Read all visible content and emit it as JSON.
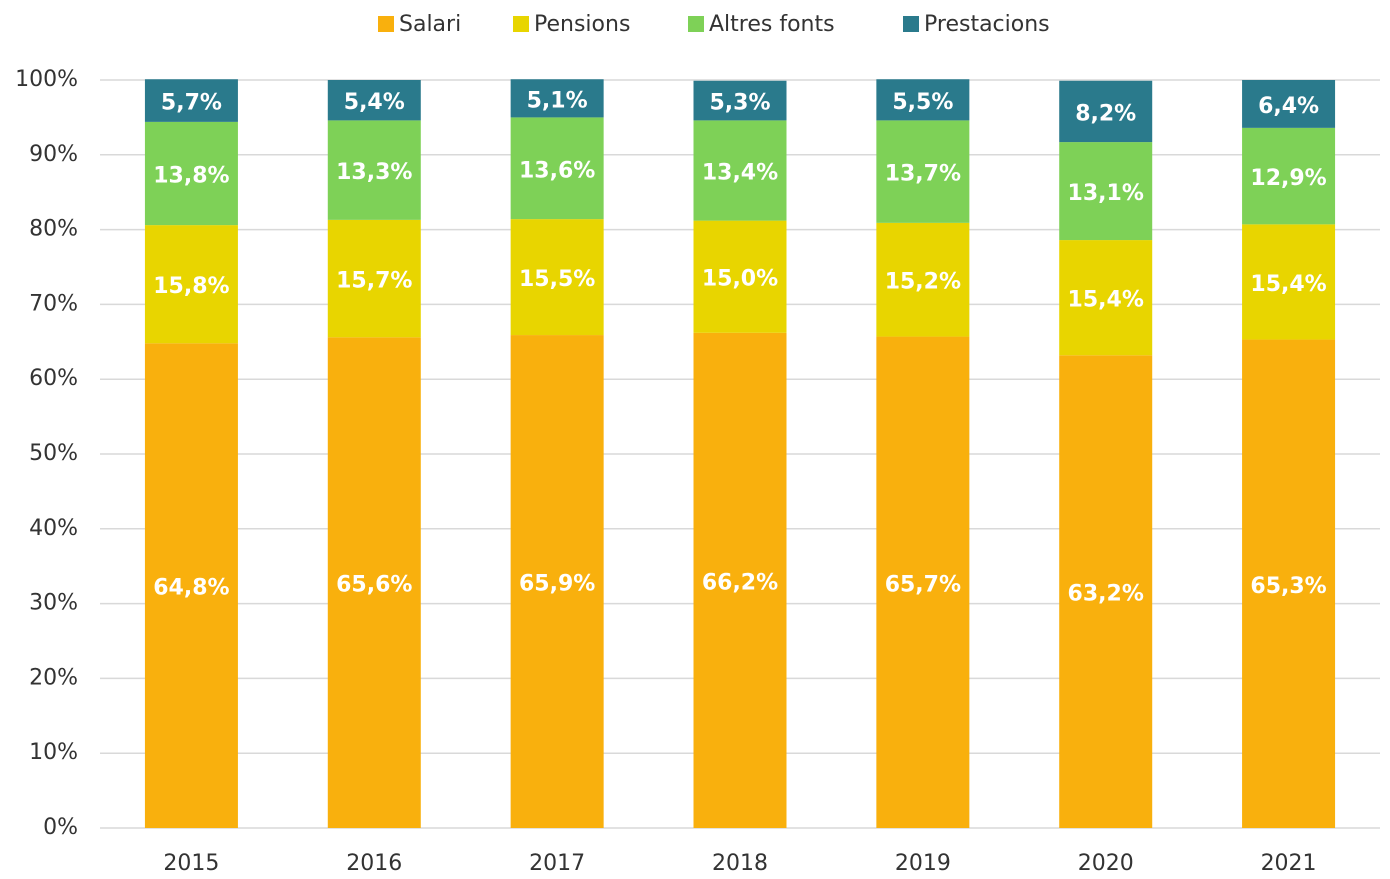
{
  "chart_data": {
    "type": "stacked_bar",
    "categories": [
      "2015",
      "2016",
      "2017",
      "2018",
      "2019",
      "2020",
      "2021"
    ],
    "series": [
      {
        "name": "Salari",
        "color": "#f9b00d",
        "values": [
          64.8,
          65.6,
          65.9,
          66.2,
          65.7,
          63.2,
          65.3
        ],
        "value_labels": [
          "64,8%",
          "65,6%",
          "65,9%",
          "66,2%",
          "65,7%",
          "63,2%",
          "65,3%"
        ]
      },
      {
        "name": "Pensions",
        "color": "#e8d500",
        "values": [
          15.8,
          15.7,
          15.5,
          15.0,
          15.2,
          15.4,
          15.4
        ],
        "value_labels": [
          "15,8%",
          "15,7%",
          "15,5%",
          "15,0%",
          "15,2%",
          "15,4%",
          "15,4%"
        ]
      },
      {
        "name": "Altres fonts",
        "color": "#7ed157",
        "values": [
          13.8,
          13.3,
          13.6,
          13.4,
          13.7,
          13.1,
          12.9
        ],
        "value_labels": [
          "13,8%",
          "13,3%",
          "13,6%",
          "13,4%",
          "13,7%",
          "13,1%",
          "12,9%"
        ]
      },
      {
        "name": "Prestacions",
        "color": "#2a7a8c",
        "values": [
          5.7,
          5.4,
          5.1,
          5.3,
          5.5,
          8.2,
          6.4
        ],
        "value_labels": [
          "5,7%",
          "5,4%",
          "5,1%",
          "5,3%",
          "5,5%",
          "8,2%",
          "6,4%"
        ]
      }
    ],
    "ylim": [
      0,
      100
    ],
    "yticks": [
      {
        "value": 0,
        "label": "0%"
      },
      {
        "value": 10,
        "label": "10%"
      },
      {
        "value": 20,
        "label": "20%"
      },
      {
        "value": 30,
        "label": "30%"
      },
      {
        "value": 40,
        "label": "40%"
      },
      {
        "value": 50,
        "label": "50%"
      },
      {
        "value": 60,
        "label": "60%"
      },
      {
        "value": 70,
        "label": "70%"
      },
      {
        "value": 80,
        "label": "80%"
      },
      {
        "value": 90,
        "label": "90%"
      },
      {
        "value": 100,
        "label": "100%"
      }
    ],
    "grid": true,
    "legend": "top"
  }
}
